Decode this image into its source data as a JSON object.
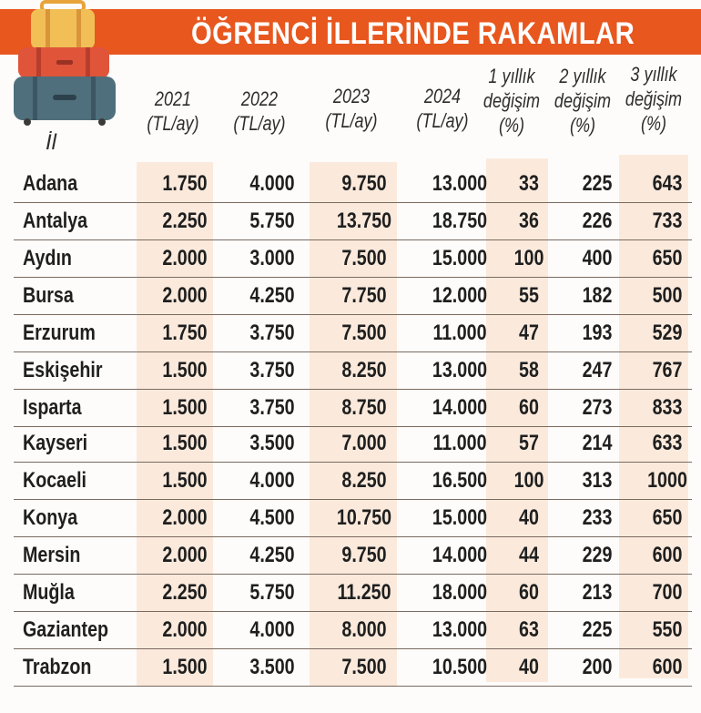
{
  "title": "ÖĞRENCİ İLLERİNDE RAKAMLAR",
  "colors": {
    "banner": "#e8571e",
    "highlight": "#fbeadc"
  },
  "icon": "suitcase-stack-icon",
  "headers": {
    "il": "İl",
    "y2021": [
      "2021",
      "(TL/ay)"
    ],
    "y2022": [
      "2022",
      "(TL/ay)"
    ],
    "y2023": [
      "2023",
      "(TL/ay)"
    ],
    "y2024": [
      "2024",
      "(TL/ay)"
    ],
    "ch1": [
      "1 yıllık",
      "değişim",
      "(%)"
    ],
    "ch2": [
      "2 yıllık",
      "değişim",
      "(%)"
    ],
    "ch3": [
      "3 yıllık",
      "değişim",
      "(%)"
    ]
  },
  "rows": [
    [
      "Adana",
      "1.750",
      "4.000",
      "9.750",
      "13.000",
      "33",
      "225",
      "643"
    ],
    [
      "Antalya",
      "2.250",
      "5.750",
      "13.750",
      "18.750",
      "36",
      "226",
      "733"
    ],
    [
      "Aydın",
      "2.000",
      "3.000",
      "7.500",
      "15.000",
      "100",
      "400",
      "650"
    ],
    [
      "Bursa",
      "2.000",
      "4.250",
      "7.750",
      "12.000",
      "55",
      "182",
      "500"
    ],
    [
      "Erzurum",
      "1.750",
      "3.750",
      "7.500",
      "11.000",
      "47",
      "193",
      "529"
    ],
    [
      "Eskişehir",
      "1.500",
      "3.750",
      "8.250",
      "13.000",
      "58",
      "247",
      "767"
    ],
    [
      "Isparta",
      "1.500",
      "3.750",
      "8.750",
      "14.000",
      "60",
      "273",
      "833"
    ],
    [
      "Kayseri",
      "1.500",
      "3.500",
      "7.000",
      "11.000",
      "57",
      "214",
      "633"
    ],
    [
      "Kocaeli",
      "1.500",
      "4.000",
      "8.250",
      "16.500",
      "100",
      "313",
      "1000"
    ],
    [
      "Konya",
      "2.000",
      "4.500",
      "10.750",
      "15.000",
      "40",
      "233",
      "650"
    ],
    [
      "Mersin",
      "2.000",
      "4.250",
      "9.750",
      "14.000",
      "44",
      "229",
      "600"
    ],
    [
      "Muğla",
      "2.250",
      "5.750",
      "11.250",
      "18.000",
      "60",
      "213",
      "700"
    ],
    [
      "Gaziantep",
      "2.000",
      "4.000",
      "8.000",
      "13.000",
      "63",
      "225",
      "550"
    ],
    [
      "Trabzon",
      "1.500",
      "3.500",
      "7.500",
      "10.500",
      "40",
      "200",
      "600"
    ]
  ]
}
